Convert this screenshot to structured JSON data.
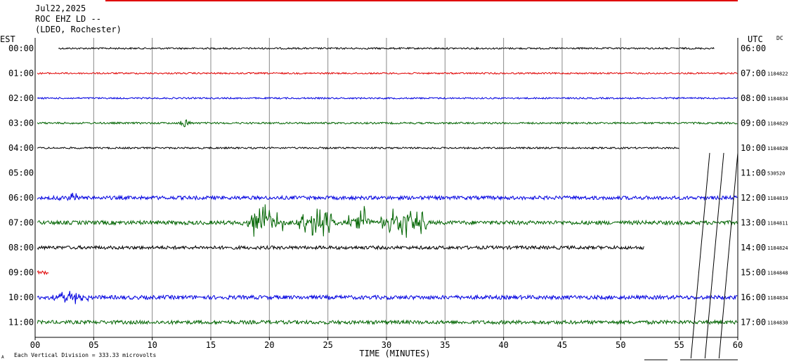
{
  "chart_data": {
    "type": "line",
    "header": {
      "date": "Jul22,2025",
      "station": "ROC EHZ LD --",
      "network": "(LDEO, Rochester)"
    },
    "left_zone": "EST",
    "right_zone": "UTC",
    "dc_label": "DC",
    "xlabel": "TIME (MINUTES)",
    "xlim": [
      0,
      60
    ],
    "x_ticks": [
      "00",
      "05",
      "10",
      "15",
      "20",
      "25",
      "30",
      "35",
      "40",
      "45",
      "50",
      "55",
      "60"
    ],
    "scale_note": "Each Vertical Division =  333.33 microvolts",
    "corner_mark": "A",
    "trace_colors": [
      "#000000",
      "#e00000",
      "#0000e0",
      "#006400"
    ],
    "rows": [
      {
        "est": "00:00",
        "utc": "06:00",
        "dc": "",
        "start": 2,
        "end": 58,
        "amp": 1.2
      },
      {
        "est": "01:00",
        "utc": "07:00",
        "dc": "1184822",
        "start": 0.2,
        "end": 60,
        "amp": 1.1
      },
      {
        "est": "02:00",
        "utc": "08:00",
        "dc": "1184834",
        "start": 0.2,
        "end": 60,
        "amp": 1.1
      },
      {
        "est": "03:00",
        "utc": "09:00",
        "dc": "1184829",
        "start": 0.2,
        "end": 60,
        "amp": 1.3
      },
      {
        "est": "04:00",
        "utc": "10:00",
        "dc": "1184828",
        "start": 0.2,
        "end": 55,
        "amp": 1.2
      },
      {
        "est": "05:00",
        "utc": "11:00",
        "dc": "530520",
        "start": 0,
        "end": 0,
        "amp": 0
      },
      {
        "est": "06:00",
        "utc": "12:00",
        "dc": "1184819",
        "start": 0.2,
        "end": 60,
        "amp": 2.6
      },
      {
        "est": "07:00",
        "utc": "13:00",
        "dc": "1184811",
        "start": 0.2,
        "end": 60,
        "amp": 2.8
      },
      {
        "est": "08:00",
        "utc": "14:00",
        "dc": "1184824",
        "start": 0.2,
        "end": 52,
        "amp": 2.4
      },
      {
        "est": "09:00",
        "utc": "15:00",
        "dc": "1184848",
        "start": 0.2,
        "end": 1.2,
        "amp": 2.5
      },
      {
        "est": "10:00",
        "utc": "16:00",
        "dc": "1184834",
        "start": 0.2,
        "end": 60,
        "amp": 2.8
      },
      {
        "est": "11:00",
        "utc": "17:00",
        "dc": "1184830",
        "start": 0.2,
        "end": 60,
        "amp": 2.6
      }
    ],
    "events": [
      {
        "row": 3,
        "start": 12.3,
        "end": 13.3,
        "amp": 18
      },
      {
        "row": 7,
        "start": 17.5,
        "end": 21.5,
        "amp": 32
      },
      {
        "row": 7,
        "start": 22,
        "end": 26,
        "amp": 26
      },
      {
        "row": 7,
        "start": 26.5,
        "end": 29,
        "amp": 30
      },
      {
        "row": 7,
        "start": 29.5,
        "end": 33.5,
        "amp": 38
      },
      {
        "row": 6,
        "start": 1,
        "end": 5,
        "amp": 8
      },
      {
        "row": 10,
        "start": 1,
        "end": 5,
        "amp": 12
      }
    ]
  }
}
